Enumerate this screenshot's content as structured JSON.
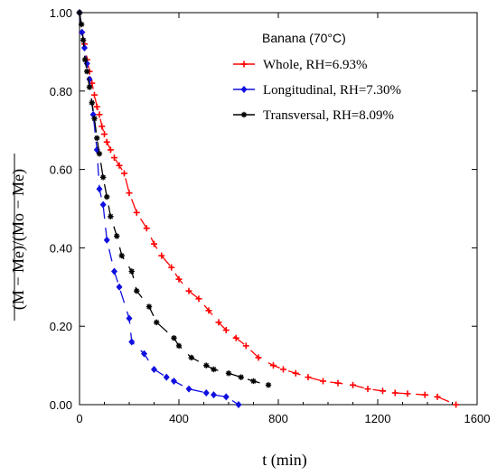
{
  "chart_data": {
    "type": "scatter",
    "title": "",
    "xlabel": "t (min)",
    "ylabel": "(M − Me)/(Mo − Me)",
    "xlim": [
      0,
      1600
    ],
    "ylim": [
      0,
      1.0
    ],
    "x_ticks": [
      "0",
      "400",
      "800",
      "1200",
      "1600"
    ],
    "y_ticks": [
      "0.00",
      "0.20",
      "0.40",
      "0.60",
      "0.80",
      "1.00"
    ],
    "grid": false,
    "legend": {
      "title": "Banana (70°C)",
      "placement": "top-right"
    },
    "series": [
      {
        "name": "Whole, RH=6.93%",
        "color": "#ff0000",
        "marker": "plus",
        "x": [
          0,
          10,
          20,
          30,
          40,
          50,
          60,
          70,
          80,
          90,
          100,
          110,
          125,
          140,
          160,
          180,
          200,
          230,
          270,
          300,
          330,
          370,
          400,
          440,
          480,
          520,
          560,
          590,
          630,
          670,
          720,
          780,
          820,
          870,
          920,
          980,
          1040,
          1100,
          1160,
          1220,
          1270,
          1320,
          1390,
          1440,
          1515
        ],
        "y": [
          1.0,
          0.95,
          0.92,
          0.88,
          0.85,
          0.82,
          0.79,
          0.76,
          0.74,
          0.71,
          0.69,
          0.67,
          0.65,
          0.63,
          0.61,
          0.59,
          0.54,
          0.49,
          0.45,
          0.41,
          0.38,
          0.35,
          0.32,
          0.29,
          0.27,
          0.24,
          0.21,
          0.19,
          0.17,
          0.15,
          0.12,
          0.1,
          0.09,
          0.08,
          0.07,
          0.06,
          0.055,
          0.05,
          0.04,
          0.035,
          0.03,
          0.028,
          0.025,
          0.02,
          0.0
        ]
      },
      {
        "name": "Longitudinal, RH=7.30%",
        "color": "#1010e0",
        "marker": "diamond",
        "x": [
          0,
          10,
          20,
          30,
          40,
          55,
          70,
          80,
          95,
          110,
          140,
          160,
          200,
          210,
          260,
          300,
          350,
          380,
          440,
          510,
          540,
          590,
          640
        ],
        "y": [
          1.0,
          0.95,
          0.91,
          0.87,
          0.83,
          0.74,
          0.65,
          0.55,
          0.51,
          0.42,
          0.34,
          0.3,
          0.22,
          0.16,
          0.13,
          0.09,
          0.07,
          0.06,
          0.04,
          0.03,
          0.025,
          0.02,
          0.0
        ]
      },
      {
        "name": "Transversal, RH=8.09%",
        "color": "#000000",
        "marker": "star",
        "x": [
          0,
          8,
          15,
          22,
          30,
          40,
          50,
          60,
          70,
          80,
          95,
          110,
          125,
          150,
          170,
          210,
          230,
          280,
          310,
          380,
          400,
          450,
          510,
          540,
          600,
          650,
          700,
          760
        ],
        "y": [
          1.0,
          0.97,
          0.93,
          0.88,
          0.85,
          0.81,
          0.77,
          0.73,
          0.68,
          0.64,
          0.58,
          0.53,
          0.48,
          0.43,
          0.38,
          0.34,
          0.29,
          0.25,
          0.21,
          0.17,
          0.15,
          0.12,
          0.1,
          0.09,
          0.08,
          0.07,
          0.06,
          0.05
        ]
      }
    ]
  }
}
